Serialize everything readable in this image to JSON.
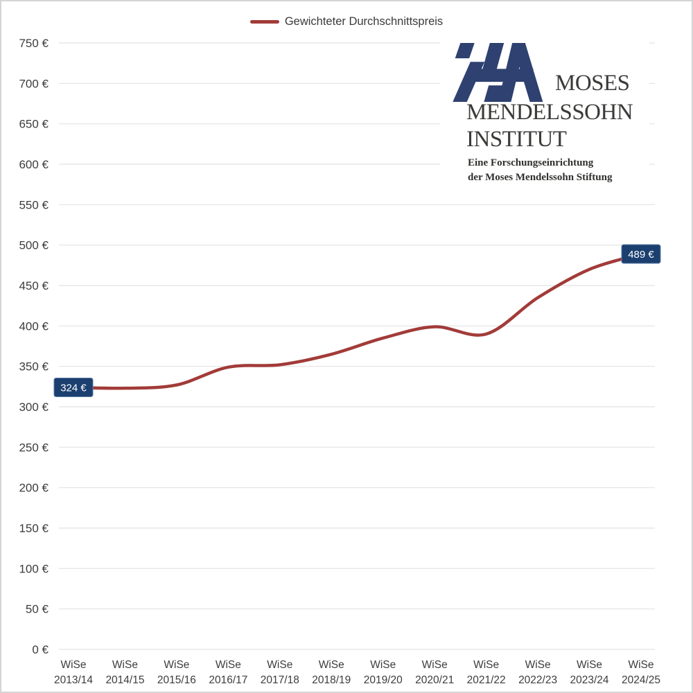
{
  "page": {
    "background": "#ffffff",
    "border_color": "#d4d4d4"
  },
  "legend": {
    "label": "Gewichteter Durchschnittspreis",
    "swatch_color": "#A23B39"
  },
  "logo": {
    "name1": "MOSES",
    "name2": "MENDELSSOHN",
    "name3": "INSTITUT",
    "tagline1": "Eine Forschungseinrichtung",
    "tagline2": "der Moses Mendelssohn Stiftung",
    "mark_color": "#2E4170",
    "text_color": "#3a3a38"
  },
  "chart_data": {
    "type": "line",
    "title": "",
    "xlabel": "",
    "ylabel": "",
    "categories": [
      "WiSe 2013/14",
      "WiSe 2014/15",
      "WiSe 2015/16",
      "WiSe 2016/17",
      "WiSe 2017/18",
      "WiSe 2018/19",
      "WiSe 2019/20",
      "WiSe 2020/21",
      "WiSe 2021/22",
      "WiSe 2022/23",
      "WiSe 2023/24",
      "WiSe 2024/25"
    ],
    "series": [
      {
        "name": "Gewichteter Durchschnittspreis",
        "color": "#A23B39",
        "line_width": 4.5,
        "values": [
          324,
          323,
          327,
          349,
          352,
          365,
          385,
          399,
          390,
          435,
          470,
          489
        ]
      }
    ],
    "ylim": [
      0,
      750
    ],
    "ytick_step": 50,
    "ytick_suffix": " €",
    "grid": true,
    "grid_color": "#E2E2E2",
    "axis_text_color": "#3C3C3C",
    "legend_position": "top",
    "point_labels": [
      {
        "index": 0,
        "text": "324 €"
      },
      {
        "index": 11,
        "text": "489 €"
      }
    ],
    "point_label_bg": "#1B3F6F",
    "point_label_border": "#5B7BA6",
    "point_label_text_color": "#FFFFFF"
  }
}
